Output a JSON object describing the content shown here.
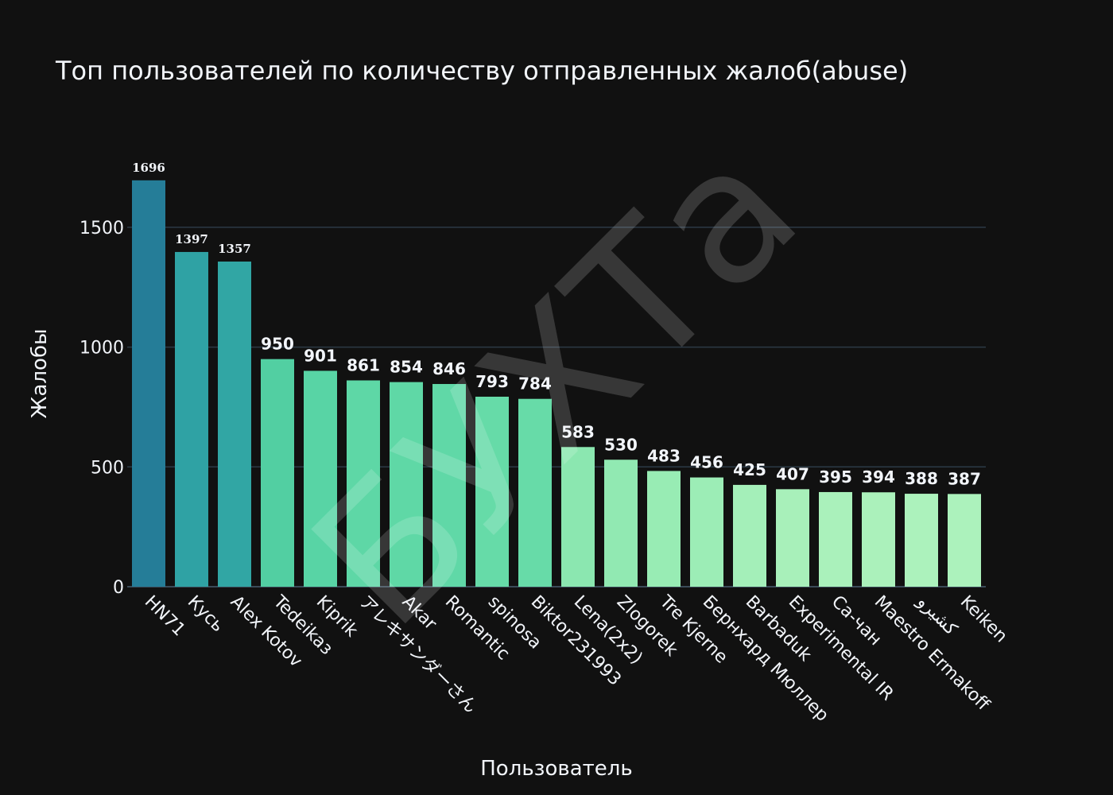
{
  "chart_data": {
    "type": "bar",
    "title": "Топ пользователей по количеству отправленных жалоб(abuse)",
    "x_label": "Пользователь",
    "y_label": "Жалобы",
    "watermark": "БУХТа",
    "categories": [
      "HN71",
      "Кусь",
      "Alex Kotov",
      "Tedeikaз",
      "Kiprik",
      "アレキサンダーさん",
      "Akar",
      "Romantic",
      "spinosa",
      "Biktor231993",
      "Lena(2x2)",
      "Zlogorek",
      "Tre Kjerne",
      "Бернхард Мюллер",
      "Barbaduk",
      "Experimental IR",
      "Ca-чан",
      "Maestro Ermakoff",
      "کشیرو",
      "Keiken"
    ],
    "values": [
      1696,
      1397,
      1357,
      950,
      901,
      861,
      854,
      846,
      793,
      784,
      583,
      530,
      483,
      456,
      425,
      407,
      395,
      394,
      388,
      387
    ],
    "colors": [
      "#257d98",
      "#2fa2a4",
      "#31a6a4",
      "#52cfa2",
      "#58d4a5",
      "#5ed7a6",
      "#5fd8a6",
      "#60d8a7",
      "#66dba8",
      "#67dba8",
      "#8be7b0",
      "#91e9b2",
      "#98ecb4",
      "#9cedb6",
      "#a4efb9",
      "#a8f0ba",
      "#aaf1bb",
      "#abf1bb",
      "#acf2bc",
      "#acf2bc"
    ],
    "ylim": [
      0,
      1785
    ],
    "yticks": [
      0,
      500,
      1000,
      1500
    ],
    "grid": true
  }
}
